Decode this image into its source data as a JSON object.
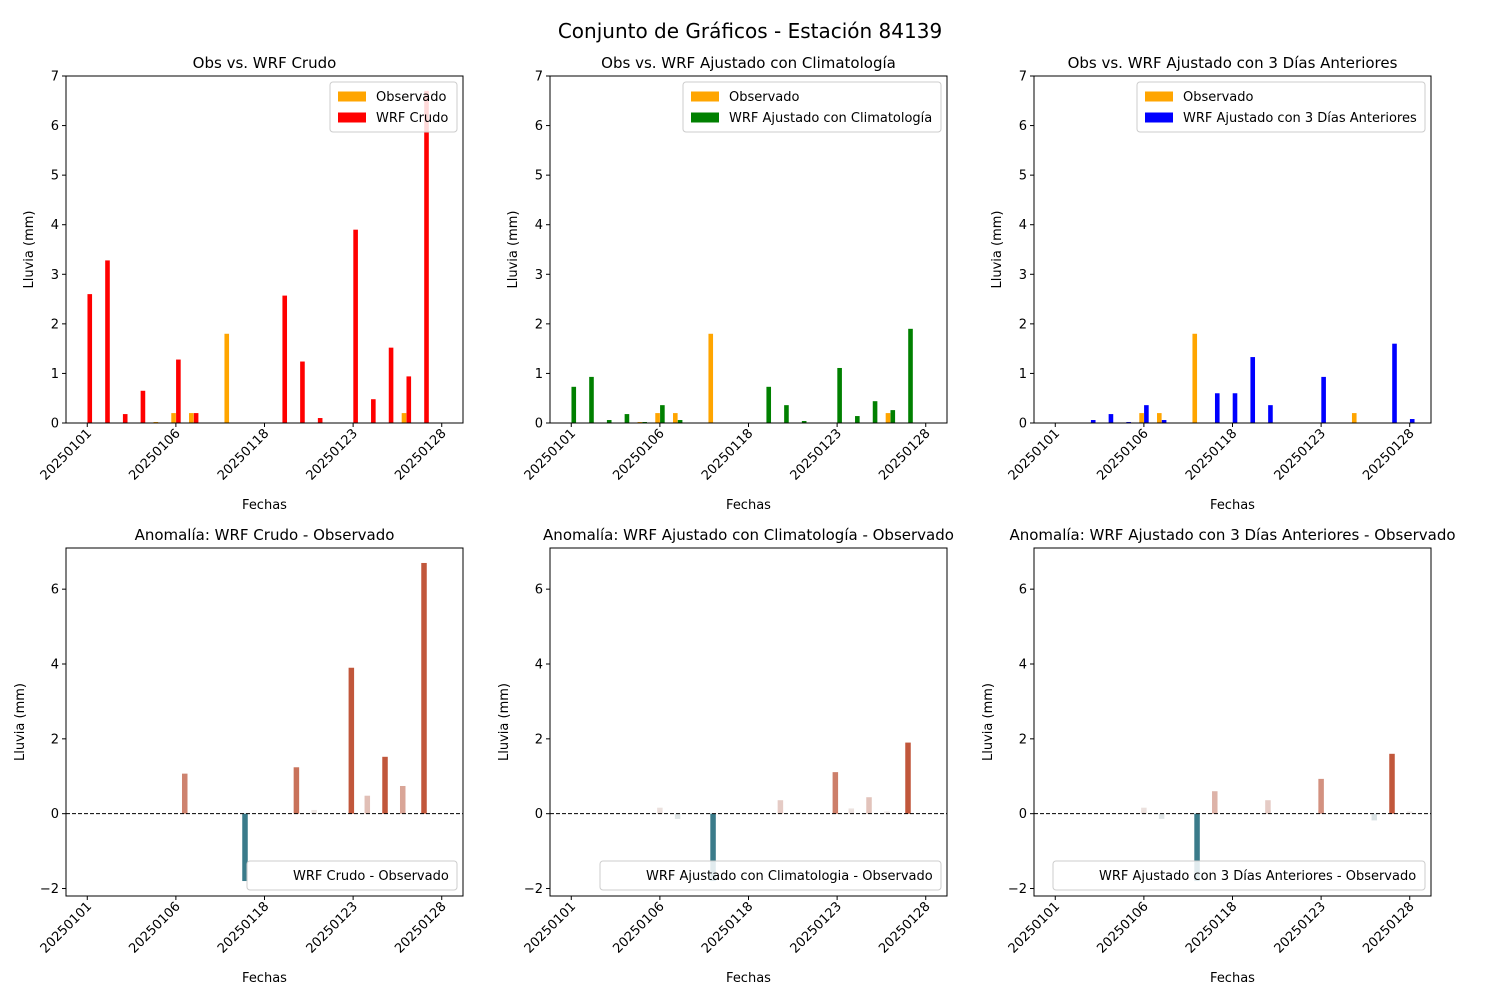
{
  "figure": {
    "title": "Conjunto de Gráficos - Estación 84139"
  },
  "colors": {
    "observed": "#FFA500",
    "raw": "#FF0000",
    "clim": "#008000",
    "prev3": "#0000FF",
    "anom_positive": "#c1573b",
    "anom_negative": "#3a7b8a"
  },
  "chart_data": [
    {
      "type": "bar",
      "title": "Obs vs. WRF Crudo",
      "xlabel": "Fechas",
      "ylabel": "Lluvia (mm)",
      "ylim": [
        0,
        7
      ],
      "yticks": [
        "0",
        "1",
        "2",
        "3",
        "4",
        "5",
        "6",
        "7"
      ],
      "xticks": [
        "20250101",
        "20250106",
        "20250118",
        "20250123",
        "20250128"
      ],
      "legend": "top-right",
      "series": [
        {
          "name": "Observado",
          "color": "#FFA500",
          "values": [
            0,
            0,
            0,
            0,
            0.02,
            0.2,
            0.2,
            0,
            1.8,
            0,
            0,
            0,
            0,
            0,
            0,
            0,
            0,
            0,
            0.2,
            0,
            0
          ]
        },
        {
          "name": "WRF Crudo",
          "color": "#FF0000",
          "values": [
            2.6,
            3.28,
            0.18,
            0.65,
            0,
            1.28,
            0.2,
            0,
            0,
            0,
            0,
            2.57,
            1.24,
            0.1,
            0,
            3.9,
            0.48,
            1.52,
            0.94,
            6.7,
            0
          ]
        }
      ]
    },
    {
      "type": "bar",
      "title": "Obs vs. WRF Ajustado con Climatología",
      "xlabel": "Fechas",
      "ylabel": "Lluvia (mm)",
      "ylim": [
        0,
        7
      ],
      "yticks": [
        "0",
        "1",
        "2",
        "3",
        "4",
        "5",
        "6",
        "7"
      ],
      "xticks": [
        "20250101",
        "20250106",
        "20250118",
        "20250123",
        "20250128"
      ],
      "legend": "top-right",
      "series": [
        {
          "name": "Observado",
          "color": "#FFA500",
          "values": [
            0,
            0,
            0,
            0,
            0.02,
            0.2,
            0.2,
            0,
            1.8,
            0,
            0,
            0,
            0,
            0,
            0,
            0,
            0,
            0,
            0.2,
            0,
            0
          ]
        },
        {
          "name": "WRF Ajustado con Climatología",
          "color": "#008000",
          "values": [
            0.73,
            0.93,
            0.06,
            0.18,
            0.02,
            0.36,
            0.06,
            0,
            0,
            0,
            0,
            0.73,
            0.36,
            0.04,
            0,
            1.11,
            0.14,
            0.44,
            0.26,
            1.9,
            0
          ]
        }
      ]
    },
    {
      "type": "bar",
      "title": "Obs vs. WRF Ajustado con 3 Días Anteriores",
      "xlabel": "Fechas",
      "ylabel": "Lluvia (mm)",
      "ylim": [
        0,
        7
      ],
      "yticks": [
        "0",
        "1",
        "2",
        "3",
        "4",
        "5",
        "6",
        "7"
      ],
      "xticks": [
        "20250101",
        "20250106",
        "20250118",
        "20250123",
        "20250128"
      ],
      "legend": "top-right",
      "series": [
        {
          "name": "Observado",
          "color": "#FFA500",
          "values": [
            0,
            0,
            0,
            0,
            0,
            0.2,
            0.2,
            0,
            1.8,
            0,
            0,
            0,
            0,
            0,
            0,
            0,
            0,
            0.2,
            0,
            0,
            0
          ]
        },
        {
          "name": "WRF Ajustado con 3 Días Anteriores",
          "color": "#0000FF",
          "values": [
            0,
            0,
            0.06,
            0.18,
            0.02,
            0.36,
            0.06,
            0,
            0,
            0.6,
            0.6,
            1.33,
            0.36,
            0,
            0,
            0.93,
            0,
            0,
            0,
            1.6,
            0.08
          ]
        }
      ]
    },
    {
      "type": "bar",
      "title": "Anomalía: WRF Crudo - Observado",
      "xlabel": "Fechas",
      "ylabel": "Lluvia (mm)",
      "ylim": [
        -2.2,
        7.1
      ],
      "yticks": [
        "−2",
        "0",
        "2",
        "4",
        "6"
      ],
      "xticks": [
        "20250101",
        "20250106",
        "20250118",
        "20250123",
        "20250128"
      ],
      "legend": "bottom-right",
      "zero_line": "dashed",
      "series": [
        {
          "name": "WRF Crudo - Observado",
          "x": [
            5.5,
            6.5,
            8.9,
            11.8,
            12.8,
            14.9,
            15.8,
            16.8,
            17.8,
            19.0
          ],
          "values": [
            1.07,
            0.02,
            -1.8,
            1.24,
            0.1,
            3.9,
            0.48,
            1.52,
            0.74,
            6.7
          ]
        }
      ]
    },
    {
      "type": "bar",
      "title": "Anomalía: WRF Ajustado con Climatología - Observado",
      "xlabel": "Fechas",
      "ylabel": "Lluvia (mm)",
      "ylim": [
        -2.2,
        7.1
      ],
      "yticks": [
        "−2",
        "0",
        "2",
        "4",
        "6"
      ],
      "xticks": [
        "20250101",
        "20250106",
        "20250118",
        "20250123",
        "20250128"
      ],
      "legend": "bottom-right",
      "zero_line": "dashed",
      "series": [
        {
          "name": "WRF Ajustado con Climatologia - Observado",
          "x": [
            5.0,
            6.0,
            8.0,
            11.8,
            12.8,
            14.9,
            15.8,
            16.8,
            17.8,
            19.0
          ],
          "values": [
            0.16,
            -0.14,
            -1.8,
            0.36,
            0.04,
            1.11,
            0.14,
            0.44,
            0.06,
            1.9
          ]
        }
      ]
    },
    {
      "type": "bar",
      "title": "Anomalía: WRF Ajustado con 3 Días Anteriores - Observado",
      "xlabel": "Fechas",
      "ylabel": "Lluvia (mm)",
      "ylim": [
        -2.2,
        7.1
      ],
      "yticks": [
        "−2",
        "0",
        "2",
        "4",
        "6"
      ],
      "xticks": [
        "20250101",
        "20250106",
        "20250118",
        "20250123",
        "20250128"
      ],
      "legend": "bottom-right",
      "zero_line": "dashed",
      "series": [
        {
          "name": "WRF Ajustado con 3 Días Anteriores - Observado",
          "x": [
            5.0,
            6.0,
            8.0,
            9.0,
            12.0,
            15.0,
            18.0,
            19.0,
            20.0
          ],
          "values": [
            0.16,
            -0.14,
            -1.8,
            0.6,
            0.36,
            0.93,
            -0.18,
            1.6,
            0.06
          ]
        }
      ]
    }
  ]
}
